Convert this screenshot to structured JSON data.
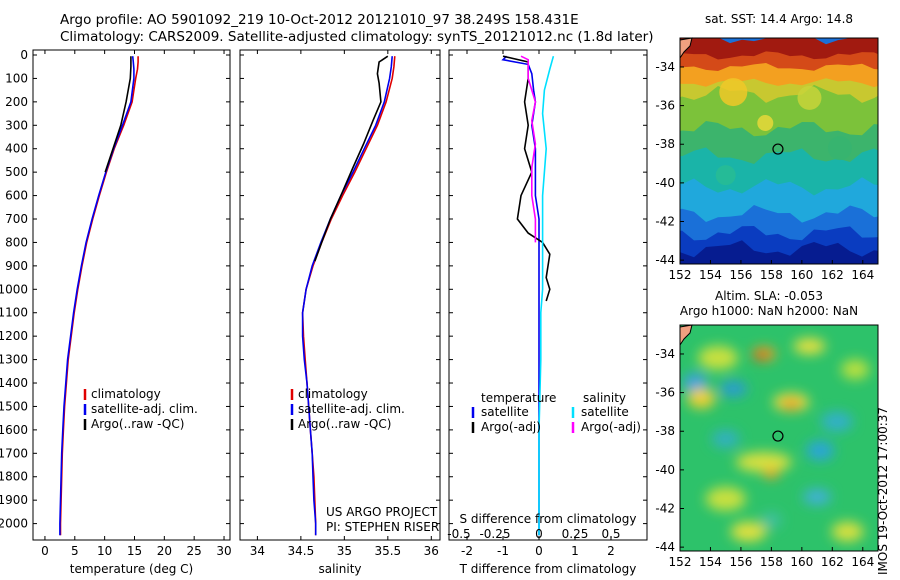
{
  "header": {
    "line1": "Argo profile: AO 5901092_219 10-Oct-2012 20121010_97 38.249S 158.431E",
    "line2": "Climatology: CARS2009. Satellite-adjusted climatology: synTS_20121012.nc (1.8d later)"
  },
  "side_label": "IMOS 19-Oct-2012 17:00:37",
  "colors": {
    "climatology": "#e00000",
    "satellite": "#0000ee",
    "argo": "#000000",
    "satellite_salinity": "#00e0ff",
    "argo_salinity": "#ff00ff"
  },
  "chart_data": [
    {
      "type": "line",
      "name": "temperature profile",
      "xlabel": "temperature (deg C)",
      "xlim": [
        -2,
        31
      ],
      "ylim": [
        2070,
        0
      ],
      "xticks": [
        0,
        5,
        10,
        15,
        20,
        25,
        30
      ],
      "yticks": [
        0,
        100,
        200,
        300,
        400,
        500,
        600,
        700,
        800,
        900,
        1000,
        1100,
        1200,
        1300,
        1400,
        1500,
        1600,
        1700,
        1800,
        1900,
        2000
      ],
      "legend": [
        "climatology",
        "satellite-adj. clim.",
        "Argo(..raw -QC)"
      ],
      "legend_position": "lower-center",
      "series": [
        {
          "name": "climatology",
          "color": "#e00000",
          "points": [
            [
              15.6,
              5
            ],
            [
              15.6,
              30
            ],
            [
              15.5,
              60
            ],
            [
              15.2,
              100
            ],
            [
              14.6,
              200
            ],
            [
              13.2,
              300
            ],
            [
              11.6,
              400
            ],
            [
              10.3,
              500
            ],
            [
              9.1,
              600
            ],
            [
              8.0,
              700
            ],
            [
              7.0,
              800
            ],
            [
              6.2,
              900
            ],
            [
              5.5,
              1000
            ],
            [
              4.9,
              1100
            ],
            [
              4.4,
              1200
            ],
            [
              3.9,
              1300
            ],
            [
              3.6,
              1400
            ],
            [
              3.3,
              1500
            ],
            [
              3.1,
              1600
            ],
            [
              2.9,
              1700
            ],
            [
              2.8,
              1800
            ],
            [
              2.7,
              1900
            ],
            [
              2.6,
              2000
            ],
            [
              2.6,
              2050
            ]
          ]
        },
        {
          "name": "satellite-adj. clim.",
          "color": "#0000ee",
          "points": [
            [
              14.7,
              5
            ],
            [
              14.8,
              30
            ],
            [
              14.9,
              60
            ],
            [
              14.9,
              100
            ],
            [
              14.4,
              200
            ],
            [
              13.0,
              300
            ],
            [
              11.5,
              400
            ],
            [
              10.2,
              500
            ],
            [
              9.0,
              600
            ],
            [
              7.9,
              700
            ],
            [
              6.9,
              800
            ],
            [
              6.1,
              900
            ],
            [
              5.4,
              1000
            ],
            [
              4.8,
              1100
            ],
            [
              4.3,
              1200
            ],
            [
              3.8,
              1300
            ],
            [
              3.5,
              1400
            ],
            [
              3.2,
              1500
            ],
            [
              3.0,
              1600
            ],
            [
              2.8,
              1700
            ],
            [
              2.7,
              1800
            ],
            [
              2.6,
              1900
            ],
            [
              2.5,
              2000
            ],
            [
              2.5,
              2050
            ]
          ]
        },
        {
          "name": "Argo(..raw -QC)",
          "color": "#000000",
          "points": [
            [
              14.4,
              5
            ],
            [
              14.4,
              50
            ],
            [
              14.3,
              100
            ],
            [
              13.6,
              200
            ],
            [
              12.7,
              300
            ],
            [
              11.4,
              400
            ],
            [
              10.1,
              500
            ]
          ]
        }
      ]
    },
    {
      "type": "line",
      "name": "salinity profile",
      "xlabel": "salinity",
      "xlim": [
        33.8,
        36.1
      ],
      "ylim": [
        2070,
        0
      ],
      "xticks": [
        34,
        34.5,
        35,
        35.5,
        36
      ],
      "legend": [
        "climatology",
        "satellite-adj. clim.",
        "Argo(..raw -QC)"
      ],
      "legend_position": "lower-center",
      "annotation": [
        "US ARGO PROJECT",
        "PI: STEPHEN RISER"
      ],
      "series": [
        {
          "name": "climatology",
          "color": "#e00000",
          "points": [
            [
              35.58,
              5
            ],
            [
              35.57,
              50
            ],
            [
              35.55,
              100
            ],
            [
              35.48,
              200
            ],
            [
              35.38,
              300
            ],
            [
              35.25,
              400
            ],
            [
              35.12,
              500
            ],
            [
              34.98,
              600
            ],
            [
              34.85,
              700
            ],
            [
              34.74,
              800
            ],
            [
              34.64,
              900
            ],
            [
              34.56,
              1000
            ],
            [
              34.52,
              1100
            ],
            [
              34.53,
              1200
            ],
            [
              34.55,
              1300
            ],
            [
              34.57,
              1400
            ],
            [
              34.59,
              1500
            ],
            [
              34.61,
              1600
            ],
            [
              34.63,
              1700
            ],
            [
              34.65,
              1800
            ],
            [
              34.66,
              1900
            ],
            [
              34.67,
              2000
            ],
            [
              34.67,
              2050
            ]
          ]
        },
        {
          "name": "satellite-adj. clim.",
          "color": "#0000ee",
          "points": [
            [
              35.55,
              5
            ],
            [
              35.54,
              50
            ],
            [
              35.52,
              100
            ],
            [
              35.46,
              200
            ],
            [
              35.36,
              300
            ],
            [
              35.23,
              400
            ],
            [
              35.1,
              500
            ],
            [
              34.96,
              600
            ],
            [
              34.84,
              700
            ],
            [
              34.73,
              800
            ],
            [
              34.63,
              900
            ],
            [
              34.56,
              1000
            ],
            [
              34.52,
              1100
            ],
            [
              34.52,
              1200
            ],
            [
              34.54,
              1300
            ],
            [
              34.57,
              1400
            ],
            [
              34.59,
              1500
            ],
            [
              34.61,
              1600
            ],
            [
              34.63,
              1700
            ],
            [
              34.64,
              1800
            ],
            [
              34.65,
              1900
            ],
            [
              34.67,
              2000
            ],
            [
              34.67,
              2050
            ]
          ]
        },
        {
          "name": "Argo(..raw -QC)",
          "color": "#000000",
          "points": [
            [
              35.5,
              5
            ],
            [
              35.4,
              30
            ],
            [
              35.38,
              80
            ],
            [
              35.4,
              120
            ],
            [
              35.42,
              200
            ],
            [
              35.33,
              280
            ],
            [
              35.22,
              380
            ],
            [
              35.1,
              480
            ],
            [
              34.96,
              600
            ],
            [
              34.84,
              700
            ],
            [
              34.74,
              800
            ],
            [
              34.66,
              880
            ]
          ]
        }
      ]
    },
    {
      "type": "line",
      "name": "difference from climatology",
      "xlabel": "T difference from climatology",
      "xlabel_top": "S difference from climatology",
      "xlim": [
        -2.5,
        3
      ],
      "ylim": [
        2070,
        0
      ],
      "xticks": [
        -2,
        -1,
        0,
        1,
        2
      ],
      "xticks_top": [
        "-0.5",
        "-0.25",
        "0",
        "0.25",
        "0.5"
      ],
      "legend_headers": [
        "temperature",
        "salinity"
      ],
      "legend": [
        "satellite",
        "Argo(-adj)",
        "satellite",
        "Argo(-adj)"
      ],
      "legend_position": "lower-center",
      "series": [
        {
          "name": "satellite",
          "group": "temperature",
          "color": "#0000ee",
          "points": [
            [
              -0.9,
              5
            ],
            [
              -1.0,
              20
            ],
            [
              -0.3,
              40
            ],
            [
              -0.2,
              80
            ],
            [
              -0.15,
              150
            ],
            [
              -0.1,
              200
            ],
            [
              -0.2,
              300
            ],
            [
              -0.1,
              400
            ],
            [
              -0.1,
              500
            ],
            [
              -0.1,
              600
            ],
            [
              0,
              700
            ],
            [
              0,
              800
            ],
            [
              0,
              900
            ],
            [
              0,
              1000
            ],
            [
              0,
              1200
            ],
            [
              0,
              1400
            ],
            [
              0,
              1600
            ],
            [
              0,
              1800
            ],
            [
              0,
              2050
            ]
          ]
        },
        {
          "name": "Argo(-adj)",
          "group": "temperature",
          "color": "#000000",
          "points": [
            [
              -1.0,
              5
            ],
            [
              -0.3,
              30
            ],
            [
              -0.3,
              100
            ],
            [
              -0.4,
              200
            ],
            [
              -0.3,
              300
            ],
            [
              -0.4,
              400
            ],
            [
              -0.2,
              500
            ],
            [
              -0.5,
              600
            ],
            [
              -0.6,
              700
            ],
            [
              -0.3,
              760
            ],
            [
              0.1,
              800
            ],
            [
              0.3,
              850
            ],
            [
              0.2,
              950
            ],
            [
              0.3,
              1000
            ],
            [
              0.2,
              1050
            ]
          ]
        },
        {
          "name": "satellite",
          "group": "salinity",
          "color": "#00e0ff",
          "points": [
            [
              0.4,
              5
            ],
            [
              0.3,
              60
            ],
            [
              0.15,
              150
            ],
            [
              0.1,
              250
            ],
            [
              0.2,
              400
            ],
            [
              0.1,
              600
            ],
            [
              0.1,
              800
            ],
            [
              0.1,
              1000
            ],
            [
              0.05,
              1100
            ],
            [
              0.05,
              1300
            ],
            [
              0.0,
              1600
            ],
            [
              0.0,
              2050
            ]
          ]
        },
        {
          "name": "Argo(-adj)",
          "group": "salinity",
          "color": "#ff00ff",
          "points": [
            [
              -0.5,
              5
            ],
            [
              -0.3,
              20
            ],
            [
              -0.3,
              100
            ],
            [
              -0.1,
              200
            ],
            [
              -0.2,
              280
            ],
            [
              -0.1,
              380
            ],
            [
              -0.2,
              480
            ],
            [
              -0.2,
              600
            ],
            [
              -0.1,
              700
            ],
            [
              -0.1,
              800
            ]
          ]
        }
      ]
    },
    {
      "type": "heatmap",
      "name": "sat SST map",
      "title": "sat. SST: 14.4  Argo: 14.8",
      "xlim": [
        152,
        165
      ],
      "ylim": [
        -44.2,
        -32.5
      ],
      "xticks": [
        152,
        154,
        156,
        158,
        160,
        162,
        164
      ],
      "yticks": [
        -34,
        -36,
        -38,
        -40,
        -42,
        -44
      ],
      "argo_position": [
        158.431,
        -38.249
      ]
    },
    {
      "type": "heatmap",
      "name": "altimetry SLA map",
      "title": "Altim. SLA: -0.053",
      "subtitle": "Argo h1000: NaN h2000: NaN",
      "xlim": [
        152,
        165
      ],
      "ylim": [
        -44.2,
        -32.5
      ],
      "xticks": [
        152,
        154,
        156,
        158,
        160,
        162,
        164
      ],
      "yticks": [
        -34,
        -36,
        -38,
        -40,
        -42,
        -44
      ],
      "argo_position": [
        158.431,
        -38.249
      ]
    }
  ]
}
